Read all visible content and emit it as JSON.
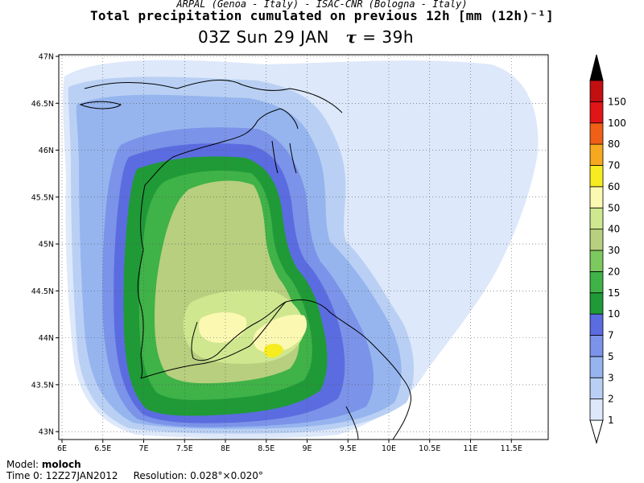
{
  "header": {
    "line1": "ARPAL (Genoa - Italy)  -  ISAC-CNR (Bologna - Italy)",
    "line2": "Total precipitation cumulated on previous 12h [mm (12h)⁻¹]",
    "line3_time": "03Z Sun 29 JAN",
    "line3_tau": "τ",
    "line3_eq": "= 39h"
  },
  "map": {
    "lat_labels": [
      "47N",
      "46.5N",
      "46N",
      "45.5N",
      "45N",
      "44.5N",
      "44N",
      "43.5N",
      "43N"
    ],
    "lat_values": [
      47,
      46.5,
      46,
      45.5,
      45,
      44.5,
      44,
      43.5,
      43
    ],
    "lon_labels": [
      "6E",
      "6.5E",
      "7E",
      "7.5E",
      "8E",
      "8.5E",
      "9E",
      "9.5E",
      "10E",
      "10.5E",
      "11E",
      "11.5E"
    ],
    "lon_values": [
      6,
      6.5,
      7,
      7.5,
      8,
      8.5,
      9,
      9.5,
      10,
      10.5,
      11,
      11.5
    ],
    "lon_range": [
      6,
      12
    ],
    "lat_range": [
      42.95,
      47
    ],
    "gridlines": "dotted"
  },
  "legend": {
    "levels": [
      "1",
      "2",
      "3",
      "5",
      "7",
      "10",
      "15",
      "20",
      "30",
      "40",
      "50",
      "60",
      "70",
      "80",
      "100",
      "150"
    ],
    "colors": [
      "#dde8fa",
      "#b9d0f4",
      "#96b5ef",
      "#7b93e8",
      "#5b6ce0",
      "#1f9a37",
      "#3fb248",
      "#7cc95f",
      "#b7cf7e",
      "#cfe78f",
      "#fbf8b2",
      "#f7ec20",
      "#f6a81e",
      "#ef6016",
      "#e11417",
      "#c20f10",
      "#8b0b0b",
      "#000000"
    ]
  },
  "footer": {
    "model_label": "Model:",
    "model_value": "moloch",
    "time_label": "Time 0:",
    "time_value": "12Z27JAN2012",
    "res_label": "Resolution:",
    "res_value": "0.028°×0.020°"
  }
}
